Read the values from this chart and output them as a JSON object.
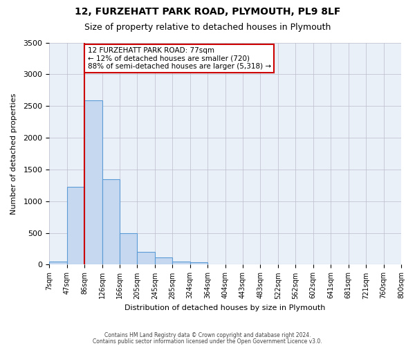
{
  "title_line1": "12, FURZEHATT PARK ROAD, PLYMOUTH, PL9 8LF",
  "title_line2": "Size of property relative to detached houses in Plymouth",
  "xlabel": "Distribution of detached houses by size in Plymouth",
  "ylabel": "Number of detached properties",
  "bin_labels": [
    "7sqm",
    "47sqm",
    "86sqm",
    "126sqm",
    "166sqm",
    "205sqm",
    "245sqm",
    "285sqm",
    "324sqm",
    "364sqm",
    "404sqm",
    "443sqm",
    "483sqm",
    "522sqm",
    "562sqm",
    "602sqm",
    "641sqm",
    "681sqm",
    "721sqm",
    "760sqm",
    "800sqm"
  ],
  "bar_heights": [
    50,
    1230,
    2590,
    1350,
    500,
    200,
    110,
    50,
    40,
    5,
    3,
    0,
    0,
    0,
    0,
    0,
    0,
    0,
    0,
    0
  ],
  "bar_color": "#c5d8f0",
  "bar_edge_color": "#5b9bd5",
  "property_line_bin_index": 1.5,
  "property_line_label": "12 FURZEHATT PARK ROAD: 77sqm",
  "annotation_line1": "← 12% of detached houses are smaller (720)",
  "annotation_line2": "88% of semi-detached houses are larger (5,318) →",
  "annotation_box_color": "#ffffff",
  "annotation_box_edge_color": "#cc0000",
  "property_line_color": "#cc0000",
  "ylim": [
    0,
    3500
  ],
  "yticks": [
    0,
    500,
    1000,
    1500,
    2000,
    2500,
    3000,
    3500
  ],
  "background_color": "#eaf0f8",
  "footer_line1": "Contains HM Land Registry data © Crown copyright and database right 2024.",
  "footer_line2": "Contains public sector information licensed under the Open Government Licence v3.0."
}
